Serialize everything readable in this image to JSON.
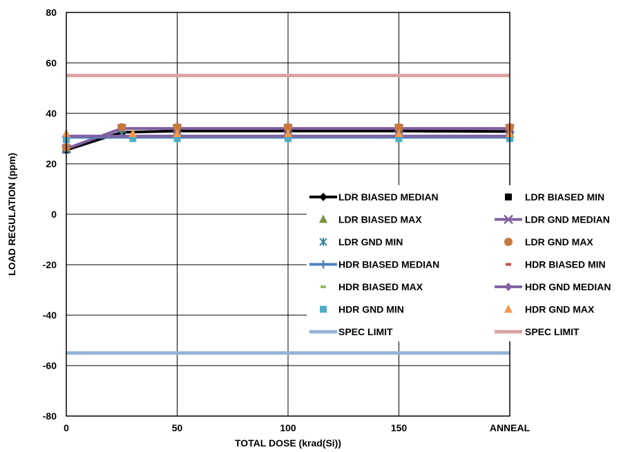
{
  "chart_data": {
    "type": "line",
    "xlabel": "TOTAL DOSE (krad(Si))",
    "ylabel": "LOAD REGULATION (ppm)",
    "xlim": [
      0,
      200
    ],
    "ylim": [
      -80,
      80
    ],
    "x_ticks": [
      {
        "value": 0,
        "label": "0"
      },
      {
        "value": 50,
        "label": "50"
      },
      {
        "value": 100,
        "label": "100"
      },
      {
        "value": 150,
        "label": "150"
      },
      {
        "value": 200,
        "label": "ANNEAL"
      }
    ],
    "y_ticks": [
      {
        "value": -80,
        "label": "-80"
      },
      {
        "value": -60,
        "label": "-60"
      },
      {
        "value": -40,
        "label": "-40"
      },
      {
        "value": -20,
        "label": "-20"
      },
      {
        "value": 0,
        "label": "0"
      },
      {
        "value": 20,
        "label": "20"
      },
      {
        "value": 40,
        "label": "40"
      },
      {
        "value": 60,
        "label": "60"
      },
      {
        "value": 80,
        "label": "80"
      }
    ],
    "grid": true,
    "legend_position": "lower-right inside plot",
    "series": [
      {
        "name": "LDR BIASED MEDIAN",
        "color": "#000000",
        "line": true,
        "marker": "diamond",
        "x": [
          0,
          25,
          50,
          100,
          150,
          200
        ],
        "y": [
          25.5,
          32.5,
          33.0,
          33.0,
          33.0,
          32.8
        ]
      },
      {
        "name": "LDR BIASED MIN",
        "color": "#000000",
        "line": false,
        "marker": "square",
        "x": [
          0,
          25,
          50,
          100,
          150,
          200
        ],
        "y": [
          25.5,
          32.0,
          32.5,
          32.5,
          32.5,
          32.2
        ]
      },
      {
        "name": "LDR BIASED MAX",
        "color": "#77933c",
        "line": false,
        "marker": "triangle",
        "x": [
          0,
          25,
          50,
          100,
          150,
          200
        ],
        "y": [
          26.5,
          34.0,
          34.0,
          34.0,
          34.5,
          34.2
        ]
      },
      {
        "name": "LDR GND MEDIAN",
        "color": "#7f5fa0",
        "line": true,
        "marker": "x",
        "x": [
          0,
          25,
          50,
          100,
          150,
          200
        ],
        "y": [
          26.0,
          34.0,
          34.0,
          34.0,
          34.0,
          34.0
        ]
      },
      {
        "name": "LDR GND MIN",
        "color": "#31859c",
        "line": false,
        "marker": "asterisk",
        "x": [
          0,
          25,
          50,
          100,
          150,
          200
        ],
        "y": [
          25.5,
          32.0,
          33.0,
          33.0,
          33.0,
          33.0
        ]
      },
      {
        "name": "LDR GND MAX",
        "color": "#c8783a",
        "line": false,
        "marker": "circle",
        "x": [
          0,
          25,
          50,
          100,
          150,
          200
        ],
        "y": [
          26.5,
          34.5,
          34.5,
          34.5,
          34.5,
          34.5
        ]
      },
      {
        "name": "HDR BIASED MEDIAN",
        "color": "#4f81bd",
        "line": true,
        "marker": "plus",
        "x": [
          0,
          30,
          50,
          100,
          150,
          200
        ],
        "y": [
          30.5,
          30.5,
          30.5,
          30.5,
          30.5,
          30.5
        ]
      },
      {
        "name": "HDR BIASED MIN",
        "color": "#c0504d",
        "line": false,
        "marker": "dash",
        "x": [
          0,
          30,
          50,
          100,
          150,
          200
        ],
        "y": [
          30.0,
          30.0,
          30.0,
          30.0,
          30.0,
          30.0
        ]
      },
      {
        "name": "HDR BIASED MAX",
        "color": "#9bbb59",
        "line": false,
        "marker": "dash",
        "x": [
          0,
          30,
          50,
          100,
          150,
          200
        ],
        "y": [
          31.0,
          31.0,
          31.0,
          31.0,
          31.0,
          31.0
        ]
      },
      {
        "name": "HDR GND MEDIAN",
        "color": "#8064a2",
        "line": true,
        "marker": "diamond",
        "x": [
          0,
          30,
          50,
          100,
          150,
          200
        ],
        "y": [
          31.0,
          31.0,
          31.0,
          31.0,
          31.0,
          31.0
        ]
      },
      {
        "name": "HDR GND MIN",
        "color": "#4bacc6",
        "line": false,
        "marker": "square",
        "x": [
          0,
          30,
          50,
          100,
          150,
          200
        ],
        "y": [
          29.5,
          30.0,
          30.0,
          30.0,
          30.0,
          30.0
        ]
      },
      {
        "name": "HDR GND MAX",
        "color": "#f79646",
        "line": false,
        "marker": "triangle",
        "x": [
          0,
          30,
          50,
          100,
          150,
          200
        ],
        "y": [
          32.0,
          32.0,
          32.0,
          32.0,
          32.0,
          32.0
        ]
      },
      {
        "name": "SPEC LIMIT",
        "color": "#95b3d7",
        "line": true,
        "thick": true,
        "marker": "none",
        "x": [
          0,
          200
        ],
        "y": [
          -55,
          -55
        ]
      },
      {
        "name": "SPEC LIMIT",
        "color": "#d9a3a1",
        "line": true,
        "thick": true,
        "marker": "none",
        "x": [
          0,
          200
        ],
        "y": [
          55,
          55
        ]
      }
    ]
  }
}
